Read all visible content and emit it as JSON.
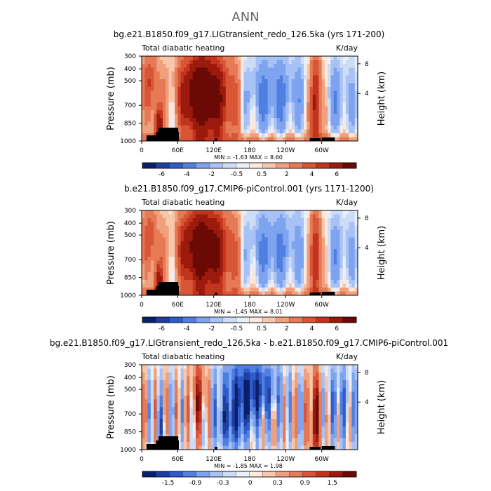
{
  "title": "ANN",
  "chart_data": [
    {
      "type": "heatmap",
      "title": "bg.e21.B1850.f09_g17.LIGtransient_redo_126.5ka (yrs 171-200)",
      "left_label": "Total diabatic heating",
      "right_label": "K/day",
      "ylabel": "Pressure (mb)",
      "y2label": "Height (km)",
      "xticks": [
        "0",
        "60E",
        "120E",
        "180",
        "120W",
        "60W"
      ],
      "yticks": [
        "300",
        "400",
        "500",
        "700",
        "850",
        "1000"
      ],
      "y2ticks": [
        "8",
        "4"
      ],
      "minmax": "MIN =   -1.63   MAX =    8.60",
      "min": -1.63,
      "max": 8.6,
      "colorbar_ticks": [
        "-6",
        "-4",
        "-2",
        "-0.5",
        "0.5",
        "2",
        "4",
        "6"
      ],
      "colors": [
        "#0a1f6b",
        "#1e3fa0",
        "#2f5ccc",
        "#4f7fe0",
        "#7ea3ef",
        "#a9c2f5",
        "#cddcf7",
        "#e9f0fb",
        "#fde8dc",
        "#f7c7ab",
        "#f0a07d",
        "#e67a56",
        "#d85535",
        "#c2341d",
        "#9c1a0c",
        "#6b0a05"
      ]
    },
    {
      "type": "heatmap",
      "title": "b.e21.B1850.f09_g17.CMIP6-piControl.001 (yrs 1171-1200)",
      "left_label": "Total diabatic heating",
      "right_label": "K/day",
      "ylabel": "Pressure (mb)",
      "y2label": "Height (km)",
      "xticks": [
        "0",
        "60E",
        "120E",
        "180",
        "120W",
        "60W"
      ],
      "yticks": [
        "300",
        "400",
        "500",
        "700",
        "850",
        "1000"
      ],
      "y2ticks": [
        "8",
        "4"
      ],
      "minmax": "MIN =   -1.45   MAX =    8.01",
      "min": -1.45,
      "max": 8.01,
      "colorbar_ticks": [
        "-6",
        "-4",
        "-2",
        "-0.5",
        "0.5",
        "2",
        "4",
        "6"
      ],
      "colors": [
        "#0a1f6b",
        "#1e3fa0",
        "#2f5ccc",
        "#4f7fe0",
        "#7ea3ef",
        "#a9c2f5",
        "#cddcf7",
        "#e9f0fb",
        "#fde8dc",
        "#f7c7ab",
        "#f0a07d",
        "#e67a56",
        "#d85535",
        "#c2341d",
        "#9c1a0c",
        "#6b0a05"
      ]
    },
    {
      "type": "heatmap",
      "title": "bg.e21.B1850.f09_g17.LIGtransient_redo_126.5ka - b.e21.B1850.f09_g17.CMIP6-piControl.001",
      "left_label": "Total diabatic heating",
      "right_label": "K/day",
      "ylabel": "Pressure (mb)",
      "y2label": "Height (km)",
      "xticks": [
        "0",
        "60E",
        "120E",
        "180",
        "120W",
        "60W"
      ],
      "yticks": [
        "300",
        "400",
        "500",
        "700",
        "850",
        "1000"
      ],
      "y2ticks": [
        "8",
        "4"
      ],
      "minmax": "MIN =   -1.85   MAX =    1.98",
      "min": -1.85,
      "max": 1.98,
      "colorbar_ticks": [
        "-1.5",
        "-0.9",
        "-0.3",
        "0",
        "0.3",
        "0.9",
        "1.5"
      ],
      "colors": [
        "#0a1f6b",
        "#1e3fa0",
        "#2f5ccc",
        "#4f7fe0",
        "#7ea3ef",
        "#a9c2f5",
        "#cddcf7",
        "#e9f0fb",
        "#fde8dc",
        "#f7c7ab",
        "#f0a07d",
        "#e67a56",
        "#d85535",
        "#c2341d",
        "#9c1a0c",
        "#6b0a05"
      ]
    }
  ]
}
